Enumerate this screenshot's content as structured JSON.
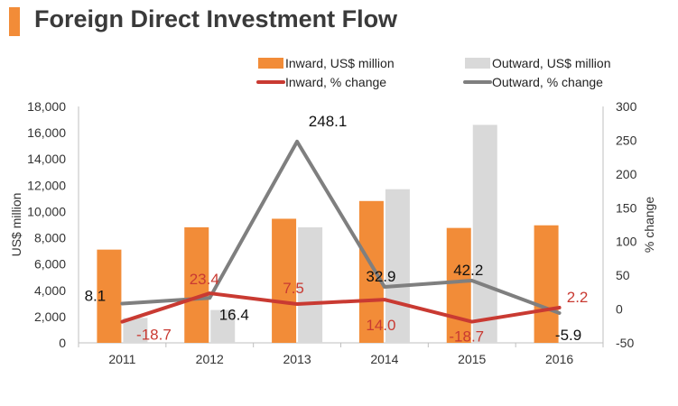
{
  "page": {
    "title": "Foreign Direct Investment Flow"
  },
  "colors": {
    "inward_bar": "#f28c38",
    "outward_bar": "#d9d9d9",
    "inward_line": "#c93a32",
    "outward_line": "#7f7f7f",
    "title_accent": "#f28c38"
  },
  "chart_data": {
    "type": "bar",
    "title": "Foreign Direct Investment Flow",
    "categories": [
      "2011",
      "2012",
      "2013",
      "2014",
      "2015",
      "2016"
    ],
    "ylabel": "US$ million",
    "y2label": "% change",
    "ylim": [
      0,
      18000
    ],
    "y2lim": [
      -50,
      300
    ],
    "yticks": [
      "0",
      "2,000",
      "4,000",
      "6,000",
      "8,000",
      "10,000",
      "12,000",
      "14,000",
      "16,000",
      "18,000"
    ],
    "y2ticks": [
      "-50",
      "0",
      "50",
      "100",
      "150",
      "200",
      "250",
      "300"
    ],
    "series": [
      {
        "name": "Inward, US$ million",
        "type": "bar",
        "axis": "left",
        "values": [
          7100,
          8800,
          9450,
          10800,
          8750,
          8950
        ]
      },
      {
        "name": "Outward, US$ million",
        "type": "bar",
        "axis": "left",
        "values": [
          1900,
          2500,
          8800,
          11700,
          16600,
          0
        ]
      },
      {
        "name": "Inward, % change",
        "type": "line",
        "axis": "right",
        "values": [
          -18.7,
          23.4,
          7.5,
          14.0,
          -18.7,
          2.2
        ],
        "labels": [
          "-18.7",
          "23.4",
          "7.5",
          "14.0",
          "-18.7",
          "2.2"
        ]
      },
      {
        "name": "Outward, % change",
        "type": "line",
        "axis": "right",
        "values": [
          8.1,
          16.4,
          248.1,
          32.9,
          42.2,
          -5.9
        ],
        "labels": [
          "8.1",
          "16.4",
          "248.1",
          "32.9",
          "42.2",
          "-5.9"
        ]
      }
    ]
  }
}
